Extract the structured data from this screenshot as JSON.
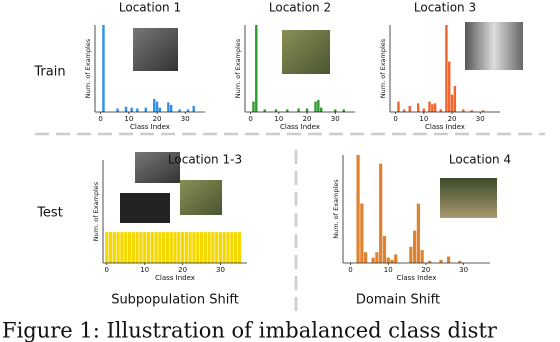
{
  "labels": {
    "train": "Train",
    "test": "Test",
    "subpop": "Subpopulation Shift",
    "domain": "Domain Shift"
  },
  "caption": "Figure 1: Illustration of imbalanced class distr",
  "chart_data": [
    {
      "type": "bar",
      "title": "Location 1",
      "xlabel": "Class Index",
      "ylabel": "Num. of Examples",
      "color": "#2e8ee6",
      "x": [
        1,
        6,
        9,
        11,
        13,
        16,
        19,
        20,
        21,
        24,
        25,
        28,
        31,
        33
      ],
      "values": [
        100,
        4,
        6,
        5,
        4,
        5,
        15,
        12,
        5,
        11,
        8,
        3,
        3,
        7
      ],
      "xlim": [
        -2,
        37
      ],
      "xticks": [
        0,
        10,
        20,
        30
      ],
      "ylim": [
        0,
        100
      ]
    },
    {
      "type": "bar",
      "title": "Location 2",
      "xlabel": "Class Index",
      "ylabel": "Num. of Examples",
      "color": "#2f9a2f",
      "x": [
        1,
        2,
        5,
        9,
        13,
        17,
        20,
        23,
        24,
        25,
        30,
        33
      ],
      "values": [
        12,
        100,
        3,
        3,
        3,
        4,
        4,
        12,
        14,
        5,
        3,
        3
      ],
      "xlim": [
        -2,
        37
      ],
      "xticks": [
        0,
        10,
        20,
        30
      ],
      "ylim": [
        0,
        100
      ]
    },
    {
      "type": "bar",
      "title": "Location 3",
      "xlabel": "Class Index",
      "ylabel": "Num. of Examples",
      "color": "#f2642a",
      "x": [
        1,
        3,
        5,
        8,
        10,
        12,
        13,
        14,
        16,
        18,
        19,
        20,
        21,
        24,
        27,
        31
      ],
      "values": [
        12,
        3,
        7,
        10,
        4,
        12,
        9,
        10,
        3,
        100,
        58,
        20,
        30,
        3,
        2,
        2
      ],
      "xlim": [
        -2,
        37
      ],
      "xticks": [
        0,
        10,
        20,
        30
      ],
      "ylim": [
        0,
        100
      ]
    },
    {
      "type": "bar",
      "title": "Location 1-3",
      "xlabel": "Class Index",
      "ylabel": "Num. of Examples",
      "color": "#f5d800",
      "x": [
        0,
        1,
        2,
        3,
        4,
        5,
        6,
        7,
        8,
        9,
        10,
        11,
        12,
        13,
        14,
        15,
        16,
        17,
        18,
        19,
        20,
        21,
        22,
        23,
        24,
        25,
        26,
        27,
        28,
        29,
        30,
        31,
        32,
        33,
        34,
        35
      ],
      "values": [
        30,
        30,
        30,
        30,
        30,
        30,
        30,
        30,
        30,
        30,
        30,
        30,
        30,
        30,
        30,
        30,
        30,
        30,
        30,
        30,
        30,
        30,
        30,
        30,
        30,
        30,
        30,
        30,
        30,
        30,
        30,
        30,
        30,
        30,
        30,
        30
      ],
      "xlim": [
        -1,
        37
      ],
      "xticks": [
        0,
        10,
        20,
        30
      ],
      "ylim": [
        0,
        100
      ]
    },
    {
      "type": "bar",
      "title": "Location 4",
      "xlabel": "Class Index",
      "ylabel": "Num. of Examples",
      "color": "#e0812f",
      "x": [
        2,
        3,
        4,
        6,
        7,
        8,
        9,
        10,
        11,
        12,
        16,
        17,
        18,
        19,
        21,
        24,
        26,
        29
      ],
      "values": [
        100,
        55,
        10,
        5,
        10,
        92,
        25,
        5,
        3,
        8,
        15,
        30,
        55,
        12,
        2,
        3,
        6,
        2
      ],
      "xlim": [
        -2,
        37
      ],
      "xticks": [
        0,
        10,
        20,
        30
      ],
      "ylim": [
        0,
        100
      ]
    }
  ]
}
